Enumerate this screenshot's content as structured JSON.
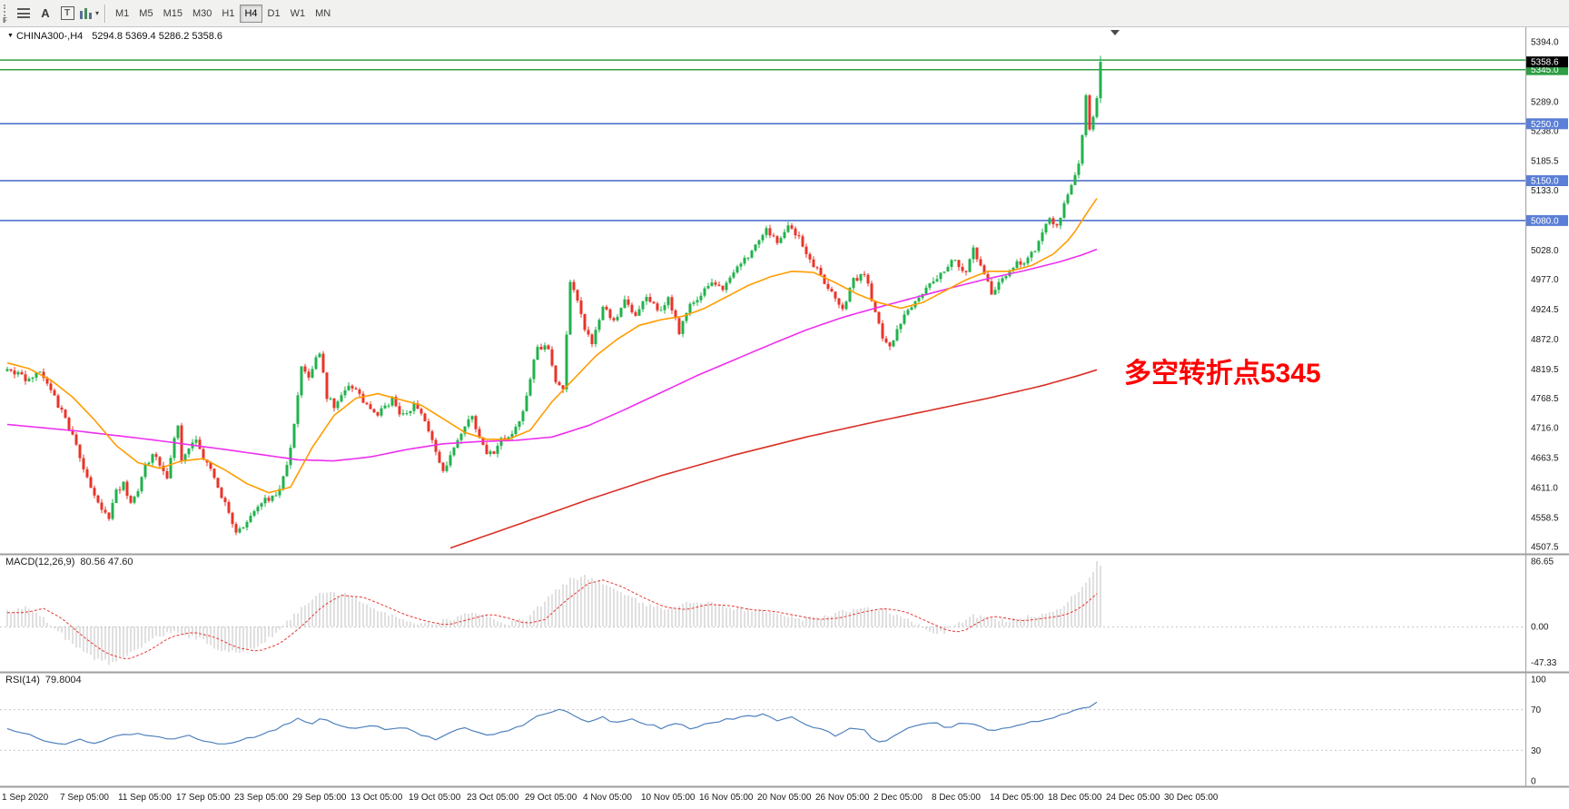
{
  "toolbar": {
    "f_label": "F",
    "a_button": "A",
    "t_button": "T",
    "timeframes": [
      {
        "label": "M1",
        "active": false
      },
      {
        "label": "M5",
        "active": false
      },
      {
        "label": "M15",
        "active": false
      },
      {
        "label": "M30",
        "active": false
      },
      {
        "label": "H1",
        "active": false
      },
      {
        "label": "H4",
        "active": true
      },
      {
        "label": "D1",
        "active": false
      },
      {
        "label": "W1",
        "active": false
      },
      {
        "label": "MN",
        "active": false
      }
    ]
  },
  "chart": {
    "title_symbol": "CHINA300-,H4",
    "title_ohlc": "5294.8 5369.4 5286.2 5358.6",
    "annotation_text": "多空转折点5345"
  },
  "price_axis": {
    "labels": [
      {
        "price": 5394.0,
        "label": "5394.0"
      },
      {
        "price": 5289.0,
        "label": "5289.0"
      },
      {
        "price": 5238.0,
        "label": "5238.0"
      },
      {
        "price": 5185.5,
        "label": "5185.5"
      },
      {
        "price": 5133.0,
        "label": "5133.0"
      },
      {
        "price": 5028.0,
        "label": "5028.0"
      },
      {
        "price": 4977.0,
        "label": "4977.0"
      },
      {
        "price": 4924.5,
        "label": "4924.5"
      },
      {
        "price": 4872.0,
        "label": "4872.0"
      },
      {
        "price": 4819.5,
        "label": "4819.5"
      },
      {
        "price": 4768.5,
        "label": "4768.5"
      },
      {
        "price": 4716.0,
        "label": "4716.0"
      },
      {
        "price": 4663.5,
        "label": "4663.5"
      },
      {
        "price": 4611.0,
        "label": "4611.0"
      },
      {
        "price": 4558.5,
        "label": "4558.5"
      },
      {
        "price": 4507.5,
        "label": "4507.5"
      }
    ],
    "tags": [
      {
        "price": 5345.0,
        "label": "5345.0",
        "color": "green"
      },
      {
        "price": 5250.0,
        "label": "5250.0",
        "color": "blue"
      },
      {
        "price": 5150.0,
        "label": "5150.0",
        "color": "blue"
      },
      {
        "price": 5080.0,
        "label": "5080.0",
        "color": "blue"
      },
      {
        "price": 5358.6,
        "label": "5358.6",
        "color": "black"
      }
    ]
  },
  "hlines": [
    {
      "price": 5362.0,
      "color": "green"
    },
    {
      "price": 5345.0,
      "color": "green"
    },
    {
      "price": 5250.0,
      "color": "blue"
    },
    {
      "price": 5150.0,
      "color": "blue"
    },
    {
      "price": 5080.0,
      "color": "blue"
    }
  ],
  "macd": {
    "name": "MACD(12,26,9)",
    "values": "80.56 47.60",
    "axis": [
      {
        "value": 86.65,
        "label": "86.65"
      },
      {
        "value": 0,
        "label": "0.00"
      },
      {
        "value": -47.33,
        "label": "-47.33"
      }
    ]
  },
  "rsi": {
    "name": "RSI(14)",
    "value": "79.8004",
    "axis": [
      {
        "value": 100,
        "label": "100"
      },
      {
        "value": 70,
        "label": "70"
      },
      {
        "value": 30,
        "label": "30"
      },
      {
        "value": 0,
        "label": "0"
      }
    ]
  },
  "time_axis": {
    "labels": [
      "1 Sep 2020",
      "7 Sep 05:00",
      "11 Sep 05:00",
      "17 Sep 05:00",
      "23 Sep 05:00",
      "29 Sep 05:00",
      "13 Oct 05:00",
      "19 Oct 05:00",
      "23 Oct 05:00",
      "29 Oct 05:00",
      "4 Nov 05:00",
      "10 Nov 05:00",
      "16 Nov 05:00",
      "20 Nov 05:00",
      "26 Nov 05:00",
      "2 Dec 05:00",
      "8 Dec 05:00",
      "14 Dec 05:00",
      "18 Dec 05:00",
      "24 Dec 05:00",
      "30 Dec 05:00"
    ]
  },
  "colors": {
    "candle_up": "#22b14c",
    "candle_down": "#e8342a",
    "ma_fast": "#ff9c00",
    "ma_mid": "#ee2fee",
    "ma_slow": "#d93025",
    "hline_green": "#2f9e44",
    "hline_blue": "#4166c9",
    "tag_black": "#000000",
    "tag_green": "#2f9e44",
    "tag_blue": "#5b7fd6",
    "macd_hist": "#c0c0c0",
    "macd_signal": "#e53935",
    "rsi_line": "#4f81bd",
    "annotation": "#ff0000"
  },
  "chart_data": {
    "type": "candlestick",
    "symbol": "CHINA300-",
    "timeframe": "H4",
    "bar_count": 302,
    "bar_spacing_px": 4,
    "noise_seed": 42,
    "price_range_visible": [
      4507.5,
      5394.0
    ],
    "last_candle": {
      "o": 5294.8,
      "h": 5369.4,
      "l": 5286.2,
      "c": 5358.6
    },
    "close_waypoints": [
      [
        0,
        4822
      ],
      [
        3,
        4810
      ],
      [
        6,
        4798
      ],
      [
        9,
        4815
      ],
      [
        12,
        4780
      ],
      [
        14,
        4755
      ],
      [
        16,
        4735
      ],
      [
        18,
        4700
      ],
      [
        20,
        4665
      ],
      [
        22,
        4630
      ],
      [
        24,
        4600
      ],
      [
        26,
        4570
      ],
      [
        28,
        4560
      ],
      [
        30,
        4605
      ],
      [
        32,
        4618
      ],
      [
        34,
        4580
      ],
      [
        36,
        4610
      ],
      [
        38,
        4650
      ],
      [
        40,
        4665
      ],
      [
        42,
        4655
      ],
      [
        44,
        4625
      ],
      [
        46,
        4700
      ],
      [
        47,
        4715
      ],
      [
        48,
        4660
      ],
      [
        50,
        4680
      ],
      [
        52,
        4695
      ],
      [
        54,
        4660
      ],
      [
        56,
        4645
      ],
      [
        58,
        4610
      ],
      [
        60,
        4585
      ],
      [
        62,
        4545
      ],
      [
        63,
        4528
      ],
      [
        65,
        4545
      ],
      [
        67,
        4560
      ],
      [
        69,
        4575
      ],
      [
        71,
        4588
      ],
      [
        73,
        4595
      ],
      [
        75,
        4610
      ],
      [
        77,
        4650
      ],
      [
        79,
        4720
      ],
      [
        81,
        4820
      ],
      [
        83,
        4800
      ],
      [
        85,
        4840
      ],
      [
        86,
        4850
      ],
      [
        88,
        4770
      ],
      [
        90,
        4755
      ],
      [
        92,
        4775
      ],
      [
        94,
        4795
      ],
      [
        96,
        4780
      ],
      [
        98,
        4765
      ],
      [
        100,
        4745
      ],
      [
        102,
        4735
      ],
      [
        104,
        4755
      ],
      [
        106,
        4765
      ],
      [
        108,
        4735
      ],
      [
        110,
        4745
      ],
      [
        112,
        4755
      ],
      [
        114,
        4745
      ],
      [
        116,
        4715
      ],
      [
        118,
        4675
      ],
      [
        120,
        4640
      ],
      [
        122,
        4665
      ],
      [
        124,
        4690
      ],
      [
        126,
        4720
      ],
      [
        128,
        4735
      ],
      [
        130,
        4695
      ],
      [
        132,
        4675
      ],
      [
        134,
        4668
      ],
      [
        136,
        4700
      ],
      [
        138,
        4695
      ],
      [
        140,
        4720
      ],
      [
        142,
        4745
      ],
      [
        146,
        4860
      ],
      [
        149,
        4855
      ],
      [
        151,
        4800
      ],
      [
        153,
        4780
      ],
      [
        155,
        4975
      ],
      [
        157,
        4940
      ],
      [
        159,
        4890
      ],
      [
        161,
        4862
      ],
      [
        164,
        4930
      ],
      [
        167,
        4900
      ],
      [
        170,
        4940
      ],
      [
        173,
        4910
      ],
      [
        176,
        4950
      ],
      [
        179,
        4920
      ],
      [
        182,
        4940
      ],
      [
        185,
        4885
      ],
      [
        188,
        4930
      ],
      [
        191,
        4950
      ],
      [
        194,
        4975
      ],
      [
        197,
        4960
      ],
      [
        200,
        4990
      ],
      [
        203,
        5010
      ],
      [
        206,
        5040
      ],
      [
        209,
        5062
      ],
      [
        212,
        5040
      ],
      [
        215,
        5072
      ],
      [
        218,
        5050
      ],
      [
        221,
        5010
      ],
      [
        224,
        4985
      ],
      [
        227,
        4950
      ],
      [
        230,
        4920
      ],
      [
        233,
        4975
      ],
      [
        236,
        4990
      ],
      [
        239,
        4920
      ],
      [
        241,
        4870
      ],
      [
        243,
        4856
      ],
      [
        246,
        4900
      ],
      [
        249,
        4930
      ],
      [
        252,
        4950
      ],
      [
        255,
        4975
      ],
      [
        258,
        4995
      ],
      [
        261,
        5010
      ],
      [
        264,
        4988
      ],
      [
        266,
        5030
      ],
      [
        269,
        4990
      ],
      [
        271,
        4950
      ],
      [
        274,
        4975
      ],
      [
        277,
        5000
      ],
      [
        280,
        5010
      ],
      [
        283,
        5030
      ],
      [
        285,
        5060
      ],
      [
        287,
        5080
      ],
      [
        289,
        5068
      ],
      [
        291,
        5110
      ],
      [
        293,
        5140
      ],
      [
        295,
        5180
      ],
      [
        296,
        5230
      ],
      [
        297,
        5300
      ],
      [
        298,
        5240
      ],
      [
        299,
        5262
      ],
      [
        300,
        5295
      ],
      [
        301,
        5358.6
      ]
    ],
    "ma_orange_waypoints": [
      [
        0,
        4830
      ],
      [
        6,
        4820
      ],
      [
        12,
        4800
      ],
      [
        18,
        4770
      ],
      [
        24,
        4730
      ],
      [
        30,
        4685
      ],
      [
        36,
        4655
      ],
      [
        42,
        4645
      ],
      [
        48,
        4658
      ],
      [
        54,
        4662
      ],
      [
        60,
        4642
      ],
      [
        66,
        4618
      ],
      [
        72,
        4602
      ],
      [
        78,
        4612
      ],
      [
        84,
        4682
      ],
      [
        90,
        4738
      ],
      [
        96,
        4768
      ],
      [
        102,
        4776
      ],
      [
        108,
        4766
      ],
      [
        114,
        4756
      ],
      [
        120,
        4732
      ],
      [
        126,
        4708
      ],
      [
        132,
        4696
      ],
      [
        138,
        4696
      ],
      [
        144,
        4712
      ],
      [
        150,
        4762
      ],
      [
        156,
        4802
      ],
      [
        162,
        4842
      ],
      [
        168,
        4872
      ],
      [
        174,
        4896
      ],
      [
        180,
        4906
      ],
      [
        186,
        4912
      ],
      [
        192,
        4926
      ],
      [
        198,
        4946
      ],
      [
        204,
        4966
      ],
      [
        210,
        4981
      ],
      [
        216,
        4991
      ],
      [
        222,
        4989
      ],
      [
        228,
        4971
      ],
      [
        234,
        4951
      ],
      [
        240,
        4936
      ],
      [
        246,
        4926
      ],
      [
        252,
        4936
      ],
      [
        258,
        4956
      ],
      [
        264,
        4976
      ],
      [
        270,
        4991
      ],
      [
        276,
        4991
      ],
      [
        282,
        5001
      ],
      [
        288,
        5021
      ],
      [
        293,
        5051
      ],
      [
        297,
        5091
      ],
      [
        301,
        5128
      ]
    ],
    "ma_magenta_waypoints": [
      [
        0,
        4722
      ],
      [
        20,
        4710
      ],
      [
        40,
        4695
      ],
      [
        60,
        4678
      ],
      [
        80,
        4660
      ],
      [
        90,
        4658
      ],
      [
        100,
        4665
      ],
      [
        110,
        4678
      ],
      [
        120,
        4688
      ],
      [
        130,
        4692
      ],
      [
        140,
        4694
      ],
      [
        150,
        4700
      ],
      [
        160,
        4720
      ],
      [
        170,
        4748
      ],
      [
        180,
        4778
      ],
      [
        190,
        4808
      ],
      [
        200,
        4835
      ],
      [
        210,
        4862
      ],
      [
        220,
        4888
      ],
      [
        230,
        4910
      ],
      [
        240,
        4928
      ],
      [
        250,
        4945
      ],
      [
        260,
        4962
      ],
      [
        270,
        4978
      ],
      [
        280,
        4992
      ],
      [
        290,
        5008
      ],
      [
        296,
        5020
      ],
      [
        301,
        5032
      ]
    ],
    "ma_red_waypoints": [
      [
        122,
        4505
      ],
      [
        140,
        4545
      ],
      [
        160,
        4590
      ],
      [
        180,
        4632
      ],
      [
        200,
        4668
      ],
      [
        220,
        4700
      ],
      [
        240,
        4728
      ],
      [
        255,
        4748
      ],
      [
        270,
        4768
      ],
      [
        285,
        4790
      ],
      [
        295,
        4808
      ],
      [
        301,
        4820
      ]
    ],
    "macd_waypoints": [
      [
        0,
        20
      ],
      [
        5,
        26
      ],
      [
        10,
        12
      ],
      [
        16,
        -15
      ],
      [
        22,
        -38
      ],
      [
        28,
        -48
      ],
      [
        34,
        -35
      ],
      [
        40,
        -15
      ],
      [
        46,
        -8
      ],
      [
        52,
        -15
      ],
      [
        58,
        -30
      ],
      [
        64,
        -36
      ],
      [
        70,
        -25
      ],
      [
        76,
        0
      ],
      [
        82,
        30
      ],
      [
        87,
        45
      ],
      [
        93,
        42
      ],
      [
        98,
        32
      ],
      [
        104,
        18
      ],
      [
        110,
        8
      ],
      [
        116,
        2
      ],
      [
        122,
        10
      ],
      [
        128,
        18
      ],
      [
        133,
        12
      ],
      [
        138,
        4
      ],
      [
        143,
        10
      ],
      [
        149,
        38
      ],
      [
        155,
        62
      ],
      [
        159,
        67
      ],
      [
        164,
        58
      ],
      [
        170,
        42
      ],
      [
        176,
        28
      ],
      [
        182,
        24
      ],
      [
        188,
        32
      ],
      [
        194,
        30
      ],
      [
        200,
        24
      ],
      [
        206,
        22
      ],
      [
        212,
        16
      ],
      [
        218,
        10
      ],
      [
        224,
        12
      ],
      [
        230,
        20
      ],
      [
        236,
        26
      ],
      [
        242,
        22
      ],
      [
        248,
        8
      ],
      [
        254,
        -6
      ],
      [
        258,
        -8
      ],
      [
        262,
        5
      ],
      [
        266,
        15
      ],
      [
        270,
        12
      ],
      [
        274,
        8
      ],
      [
        278,
        10
      ],
      [
        282,
        13
      ],
      [
        286,
        16
      ],
      [
        290,
        25
      ],
      [
        294,
        42
      ],
      [
        297,
        58
      ],
      [
        299,
        72
      ],
      [
        300,
        86.65
      ],
      [
        301,
        80.56
      ]
    ],
    "rsi_waypoints": [
      [
        0,
        52
      ],
      [
        5,
        46
      ],
      [
        10,
        40
      ],
      [
        15,
        35
      ],
      [
        20,
        40
      ],
      [
        25,
        37
      ],
      [
        30,
        44
      ],
      [
        35,
        47
      ],
      [
        40,
        43
      ],
      [
        45,
        41
      ],
      [
        50,
        45
      ],
      [
        55,
        39
      ],
      [
        60,
        36
      ],
      [
        65,
        41
      ],
      [
        70,
        45
      ],
      [
        75,
        52
      ],
      [
        80,
        61
      ],
      [
        84,
        57
      ],
      [
        87,
        62
      ],
      [
        91,
        54
      ],
      [
        95,
        52
      ],
      [
        100,
        55
      ],
      [
        105,
        50
      ],
      [
        110,
        52
      ],
      [
        115,
        44
      ],
      [
        118,
        40
      ],
      [
        122,
        47
      ],
      [
        126,
        52
      ],
      [
        130,
        47
      ],
      [
        134,
        45
      ],
      [
        138,
        50
      ],
      [
        142,
        54
      ],
      [
        146,
        63
      ],
      [
        150,
        68
      ],
      [
        153,
        72
      ],
      [
        156,
        64
      ],
      [
        160,
        58
      ],
      [
        164,
        62
      ],
      [
        168,
        57
      ],
      [
        172,
        60
      ],
      [
        176,
        56
      ],
      [
        180,
        52
      ],
      [
        184,
        57
      ],
      [
        188,
        51
      ],
      [
        192,
        56
      ],
      [
        196,
        59
      ],
      [
        200,
        61
      ],
      [
        204,
        63
      ],
      [
        208,
        65
      ],
      [
        212,
        60
      ],
      [
        216,
        62
      ],
      [
        220,
        55
      ],
      [
        224,
        50
      ],
      [
        228,
        45
      ],
      [
        232,
        52
      ],
      [
        236,
        50
      ],
      [
        239,
        38
      ],
      [
        243,
        41
      ],
      [
        247,
        50
      ],
      [
        251,
        55
      ],
      [
        255,
        58
      ],
      [
        259,
        52
      ],
      [
        263,
        57
      ],
      [
        267,
        54
      ],
      [
        271,
        48
      ],
      [
        275,
        52
      ],
      [
        279,
        56
      ],
      [
        283,
        58
      ],
      [
        287,
        60
      ],
      [
        290,
        64
      ],
      [
        293,
        68
      ],
      [
        295,
        73
      ],
      [
        297,
        70
      ],
      [
        299,
        75
      ],
      [
        301,
        79.8
      ]
    ]
  }
}
